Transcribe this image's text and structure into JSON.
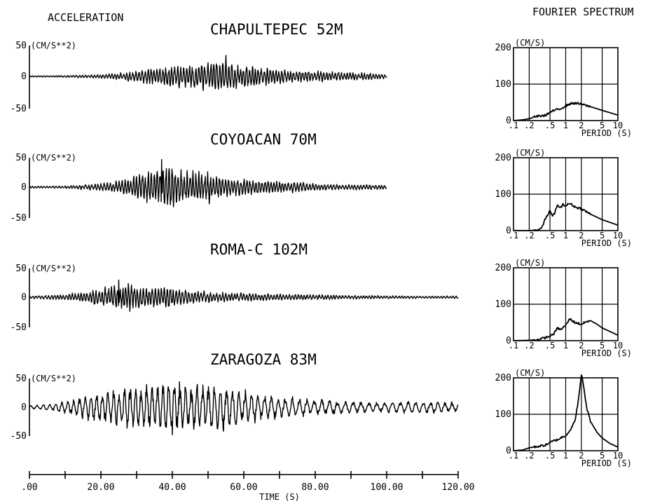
{
  "headers": {
    "left": "ACCELERATION",
    "right": "FOURIER SPECTRUM"
  },
  "time_axis": {
    "label": "TIME (S)",
    "ticks": [
      {
        "v": 0,
        "label": ".00"
      },
      {
        "v": 20,
        "label": "20.00"
      },
      {
        "v": 40,
        "label": "40.00"
      },
      {
        "v": 60,
        "label": "60.00"
      },
      {
        "v": 80,
        "label": "80.00"
      },
      {
        "v": 100,
        "label": "100.00"
      },
      {
        "v": 120,
        "label": "120.00"
      }
    ]
  },
  "chart_data": [
    {
      "type": "line",
      "title": "CHAPULTEPEC 52M",
      "ylabel": "(CM/S**2)",
      "xlabel": "TIME (S)",
      "xlim": [
        0,
        120
      ],
      "ylim": [
        -50,
        50
      ],
      "yticks": [
        "50",
        "0",
        "-50"
      ],
      "duration": 100,
      "envelope": [
        [
          0,
          1
        ],
        [
          10,
          1.5
        ],
        [
          20,
          3
        ],
        [
          25,
          5
        ],
        [
          30,
          9
        ],
        [
          35,
          12
        ],
        [
          40,
          16
        ],
        [
          45,
          18
        ],
        [
          50,
          22
        ],
        [
          55,
          25
        ],
        [
          60,
          18
        ],
        [
          65,
          14
        ],
        [
          70,
          11
        ],
        [
          75,
          9
        ],
        [
          80,
          8
        ],
        [
          85,
          7
        ],
        [
          90,
          6
        ],
        [
          95,
          5
        ],
        [
          100,
          4
        ]
      ],
      "peak": {
        "t": 55,
        "a": 34
      }
    },
    {
      "type": "line",
      "title": "COYOACAN 70M",
      "ylabel": "(CM/S**2)",
      "xlabel": "TIME (S)",
      "xlim": [
        0,
        120
      ],
      "ylim": [
        -50,
        50
      ],
      "yticks": [
        "50",
        "0",
        "-50"
      ],
      "duration": 100,
      "envelope": [
        [
          0,
          1.5
        ],
        [
          10,
          2
        ],
        [
          15,
          4
        ],
        [
          20,
          6
        ],
        [
          25,
          10
        ],
        [
          30,
          18
        ],
        [
          35,
          28
        ],
        [
          38,
          40
        ],
        [
          42,
          30
        ],
        [
          45,
          25
        ],
        [
          50,
          26
        ],
        [
          55,
          15
        ],
        [
          60,
          14
        ],
        [
          65,
          12
        ],
        [
          70,
          9
        ],
        [
          75,
          8
        ],
        [
          80,
          6
        ],
        [
          85,
          5
        ],
        [
          90,
          4
        ],
        [
          95,
          4
        ],
        [
          100,
          3
        ]
      ],
      "peak": {
        "t": 37,
        "a": 47
      }
    },
    {
      "type": "line",
      "title": "ROMA-C 102M",
      "ylabel": "(CM/S**2)",
      "xlabel": "TIME (S)",
      "xlim": [
        0,
        120
      ],
      "ylim": [
        -50,
        50
      ],
      "yticks": [
        "50",
        "0",
        "-50"
      ],
      "duration": 120,
      "envelope": [
        [
          0,
          2
        ],
        [
          5,
          3
        ],
        [
          10,
          5
        ],
        [
          15,
          8
        ],
        [
          20,
          14
        ],
        [
          25,
          22
        ],
        [
          30,
          20
        ],
        [
          35,
          15
        ],
        [
          40,
          18
        ],
        [
          45,
          11
        ],
        [
          50,
          9
        ],
        [
          55,
          8
        ],
        [
          60,
          7
        ],
        [
          65,
          6
        ],
        [
          70,
          5
        ],
        [
          80,
          4
        ],
        [
          90,
          3
        ],
        [
          100,
          2.5
        ],
        [
          110,
          2
        ],
        [
          120,
          2
        ]
      ],
      "peak": {
        "t": 25,
        "a": 30
      }
    },
    {
      "type": "line",
      "title": "ZARAGOZA 83M",
      "ylabel": "(CM/S**2)",
      "xlabel": "TIME (S)",
      "xlim": [
        0,
        120
      ],
      "ylim": [
        -50,
        50
      ],
      "yticks": [
        "50",
        "0",
        "-50"
      ],
      "duration": 120,
      "envelope": [
        [
          0,
          3
        ],
        [
          5,
          5
        ],
        [
          10,
          10
        ],
        [
          15,
          18
        ],
        [
          20,
          26
        ],
        [
          25,
          32
        ],
        [
          30,
          35
        ],
        [
          35,
          38
        ],
        [
          40,
          42
        ],
        [
          45,
          38
        ],
        [
          50,
          40
        ],
        [
          55,
          35
        ],
        [
          60,
          28
        ],
        [
          65,
          22
        ],
        [
          70,
          18
        ],
        [
          75,
          16
        ],
        [
          80,
          14
        ],
        [
          85,
          12
        ],
        [
          90,
          10
        ],
        [
          95,
          8
        ],
        [
          100,
          9
        ],
        [
          105,
          9
        ],
        [
          110,
          10
        ],
        [
          115,
          9
        ],
        [
          120,
          8
        ]
      ],
      "peak": {
        "t": 40,
        "a": -48
      }
    },
    {
      "type": "line",
      "title": "CHAPULTEPEC 52M",
      "series_label": "FOURIER SPECTRUM",
      "ylabel": "(CM/S)",
      "xlabel": "PERIOD (S)",
      "xscale": "log",
      "xlim": [
        0.1,
        10
      ],
      "ylim": [
        0,
        200
      ],
      "x": [
        0.1,
        0.15,
        0.2,
        0.25,
        0.3,
        0.4,
        0.5,
        0.6,
        0.7,
        0.8,
        1.0,
        1.2,
        1.5,
        2.0,
        3.0,
        5.0,
        10.0
      ],
      "y": [
        0,
        2,
        5,
        10,
        12,
        14,
        22,
        28,
        30,
        33,
        40,
        46,
        48,
        45,
        38,
        28,
        15
      ]
    },
    {
      "type": "line",
      "title": "COYOACAN 70M",
      "series_label": "FOURIER SPECTRUM",
      "ylabel": "(CM/S)",
      "xlabel": "PERIOD (S)",
      "xscale": "log",
      "xlim": [
        0.1,
        10
      ],
      "ylim": [
        0,
        200
      ],
      "x": [
        0.1,
        0.2,
        0.3,
        0.35,
        0.4,
        0.5,
        0.55,
        0.6,
        0.7,
        0.8,
        0.9,
        1.0,
        1.2,
        1.5,
        2.0,
        3.0,
        5.0,
        10.0
      ],
      "y": [
        0,
        0,
        2,
        8,
        30,
        55,
        40,
        45,
        70,
        62,
        72,
        68,
        75,
        65,
        60,
        45,
        30,
        15
      ]
    },
    {
      "type": "line",
      "title": "ROMA-C 102M",
      "series_label": "FOURIER SPECTRUM",
      "ylabel": "(CM/S)",
      "xlabel": "PERIOD (S)",
      "xscale": "log",
      "xlim": [
        0.1,
        10
      ],
      "ylim": [
        0,
        200
      ],
      "x": [
        0.1,
        0.2,
        0.3,
        0.4,
        0.5,
        0.6,
        0.7,
        0.8,
        1.0,
        1.2,
        1.5,
        2.0,
        2.5,
        3.0,
        4.0,
        5.0,
        10.0
      ],
      "y": [
        0,
        1,
        3,
        8,
        12,
        20,
        35,
        30,
        42,
        60,
        50,
        45,
        52,
        55,
        45,
        35,
        15
      ]
    },
    {
      "type": "line",
      "title": "ZARAGOZA 83M",
      "series_label": "FOURIER SPECTRUM",
      "ylabel": "(CM/S)",
      "xlabel": "PERIOD (S)",
      "xscale": "log",
      "xlim": [
        0.1,
        10
      ],
      "ylim": [
        0,
        200
      ],
      "x": [
        0.1,
        0.15,
        0.2,
        0.3,
        0.4,
        0.5,
        0.6,
        0.7,
        0.8,
        1.0,
        1.2,
        1.5,
        1.8,
        2.0,
        2.2,
        2.5,
        3.0,
        4.0,
        5.0,
        7.0,
        10.0
      ],
      "y": [
        0,
        2,
        8,
        12,
        15,
        22,
        28,
        30,
        35,
        42,
        55,
        80,
        150,
        210,
        180,
        120,
        80,
        50,
        35,
        20,
        10
      ]
    }
  ],
  "spectrum_axis": {
    "yticks": [
      "200",
      "100",
      "0"
    ],
    "xticks": [
      {
        "v": 0.1,
        "label": ".1"
      },
      {
        "v": 0.2,
        "label": ".2"
      },
      {
        "v": 0.5,
        "label": ".5"
      },
      {
        "v": 1,
        "label": "1"
      },
      {
        "v": 2,
        "label": "2"
      },
      {
        "v": 5,
        "label": "5"
      },
      {
        "v": 10,
        "label": "10"
      }
    ]
  }
}
